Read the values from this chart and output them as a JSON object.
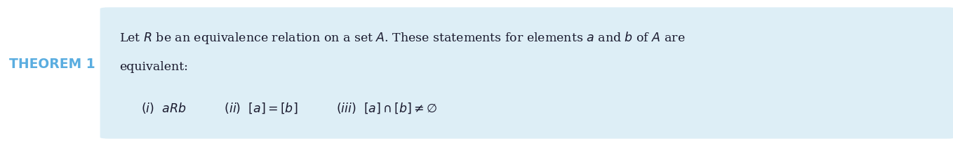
{
  "background_color": "#ffffff",
  "box_color": "#ddeef6",
  "theorem_label": "THEOREM 1",
  "theorem_color": "#5aade0",
  "text_color": "#1a1a2e",
  "line1": "Let $R$ be an equivalence relation on a set $A$. These statements for elements $a$ and $b$ of $A$ are",
  "line2": "equivalent:",
  "line3": "$(i)$  $aRb$          $(ii)$  $[a] = [b]$          $(iii)$  $[a] \\cap [b] \\neq \\varnothing$",
  "fontsize_main": 12.5,
  "fontsize_theorem": 13.5,
  "fontsize_items": 12.5,
  "fig_width": 13.58,
  "fig_height": 2.08,
  "dpi": 100
}
